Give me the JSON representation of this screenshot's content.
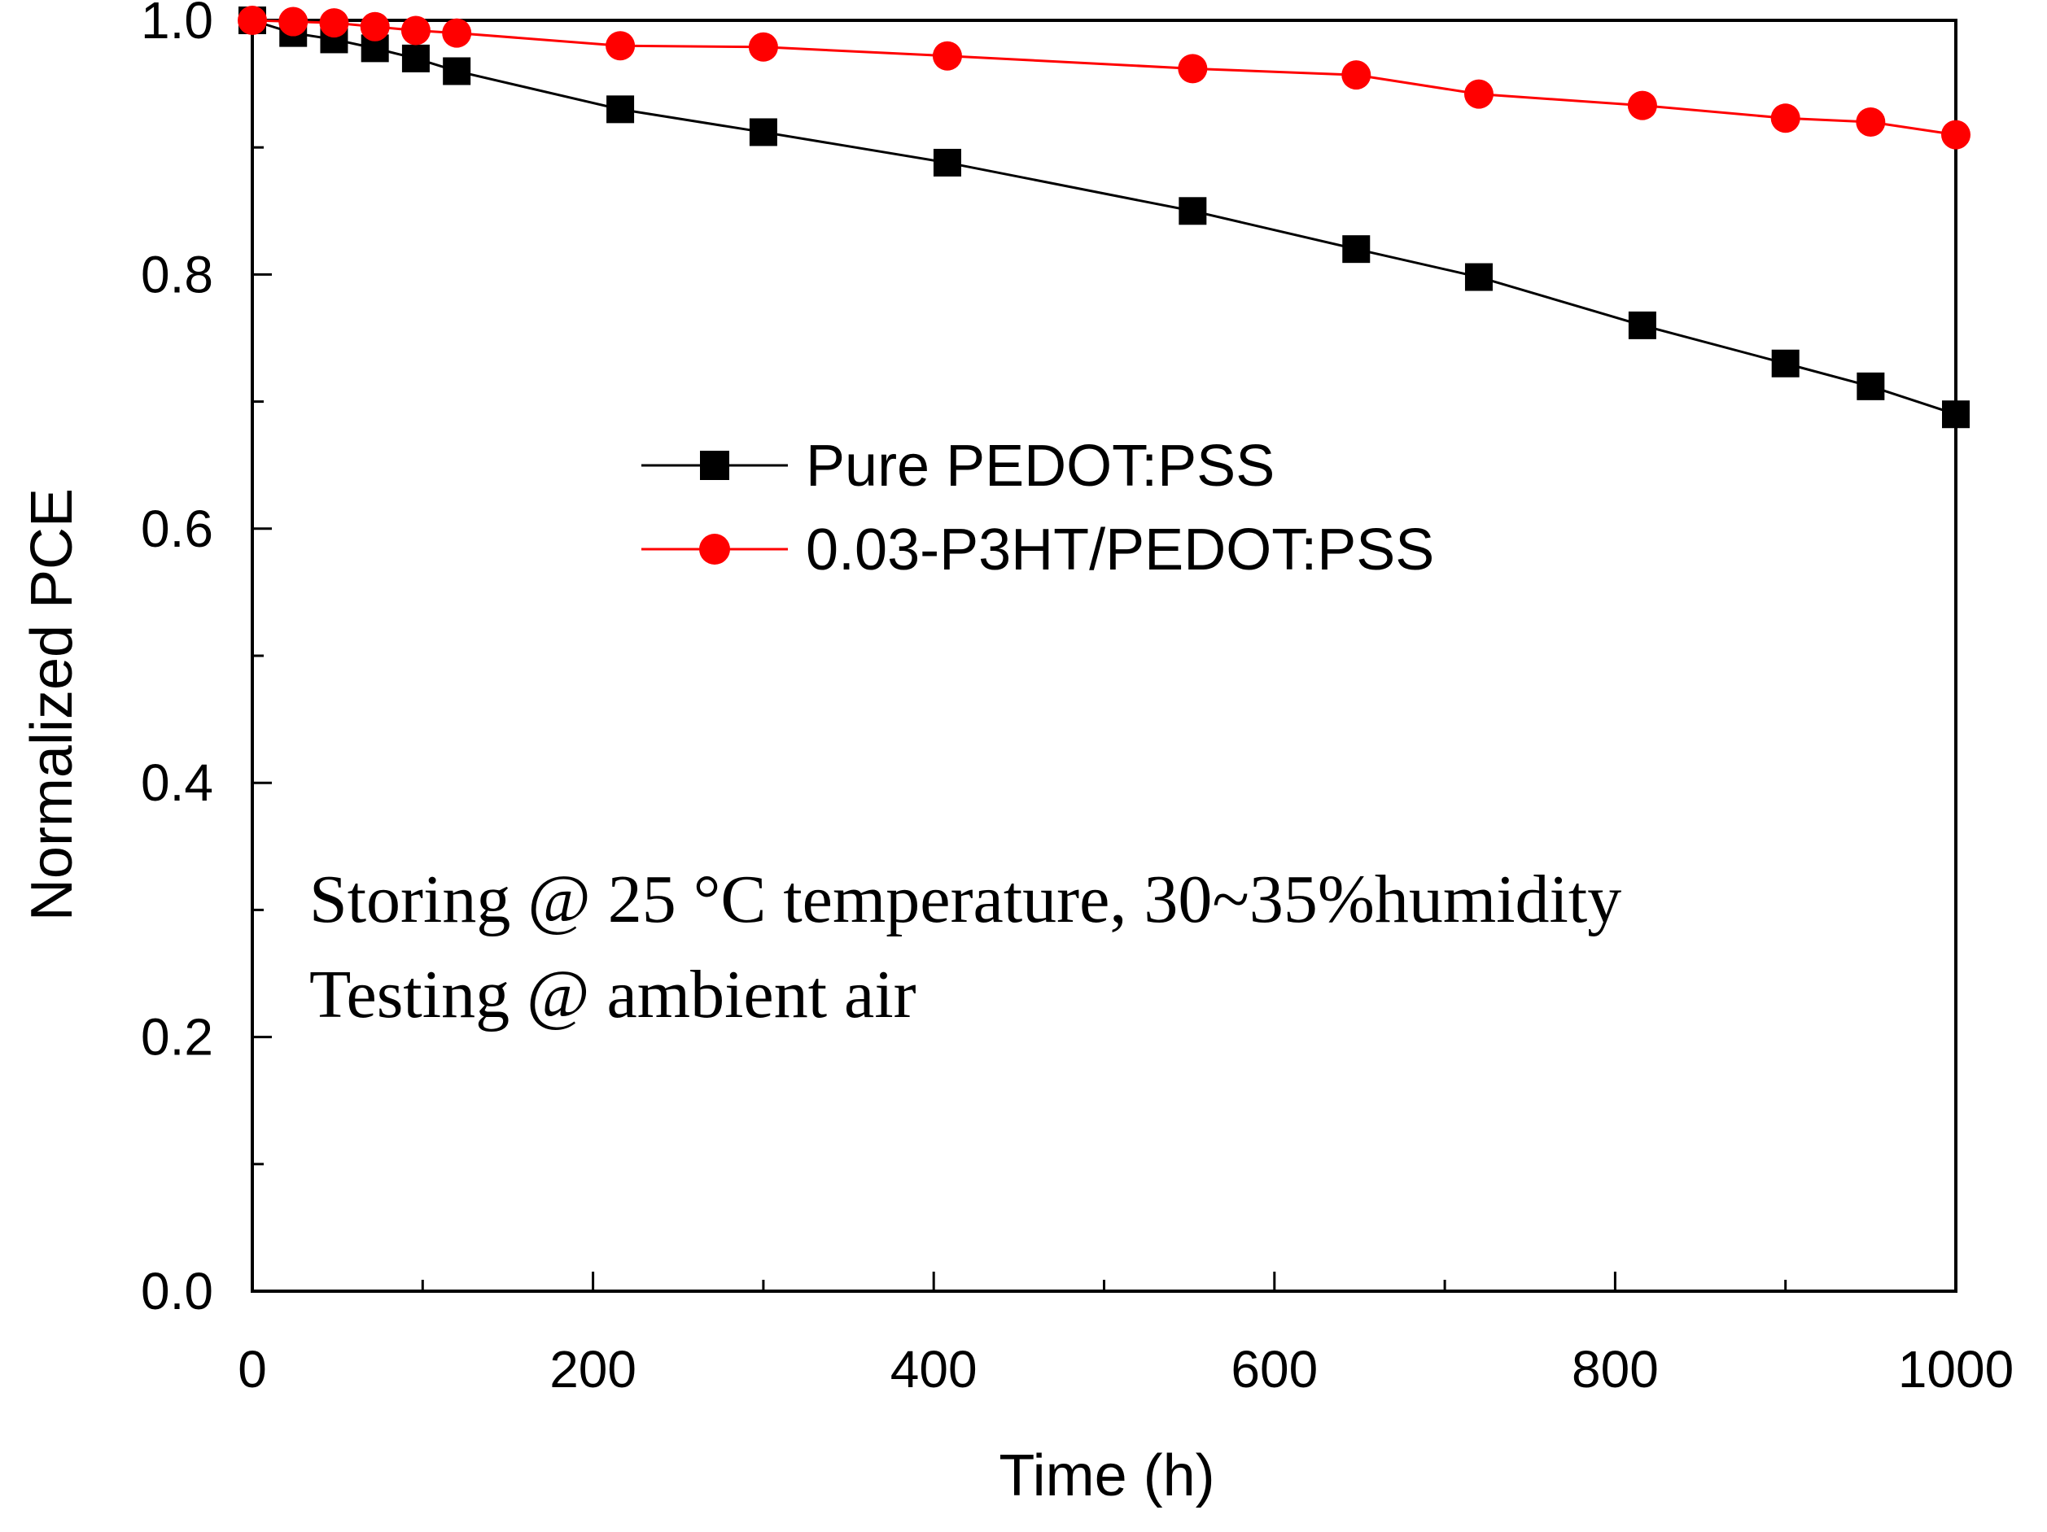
{
  "chart_data": {
    "type": "line",
    "title": "",
    "xlabel": "Time (h)",
    "ylabel": "Normalized PCE",
    "xlim": [
      0,
      1000
    ],
    "ylim": [
      0.0,
      1.0
    ],
    "xticks": [
      0,
      200,
      400,
      600,
      800,
      1000
    ],
    "xtick_labels": [
      "0",
      "200",
      "400",
      "600",
      "800",
      "1000"
    ],
    "yticks": [
      0.0,
      0.2,
      0.4,
      0.6,
      0.8,
      1.0
    ],
    "ytick_labels": [
      "0.0",
      "0.2",
      "0.4",
      "0.6",
      "0.8",
      "1.0"
    ],
    "grid": false,
    "legend_position": "center",
    "series": [
      {
        "name": "Pure PEDOT:PSS",
        "color": "#000000",
        "marker": "square",
        "x": [
          0,
          24,
          48,
          72,
          96,
          120,
          216,
          300,
          408,
          552,
          648,
          720,
          816,
          900,
          950,
          1000
        ],
        "values": [
          1.0,
          0.99,
          0.985,
          0.978,
          0.97,
          0.96,
          0.93,
          0.912,
          0.888,
          0.85,
          0.82,
          0.798,
          0.76,
          0.73,
          0.712,
          0.69
        ]
      },
      {
        "name": "0.03-P3HT/PEDOT:PSS",
        "color": "#ff0000",
        "marker": "circle",
        "x": [
          0,
          24,
          48,
          72,
          96,
          120,
          216,
          300,
          408,
          552,
          648,
          720,
          816,
          900,
          950,
          1000
        ],
        "values": [
          1.0,
          0.999,
          0.998,
          0.995,
          0.992,
          0.99,
          0.98,
          0.979,
          0.972,
          0.962,
          0.957,
          0.942,
          0.933,
          0.923,
          0.92,
          0.91
        ]
      }
    ],
    "annotations": [
      "Storing @ 25 °C temperature, 30~35%humidity",
      "Testing @ ambient air"
    ]
  }
}
